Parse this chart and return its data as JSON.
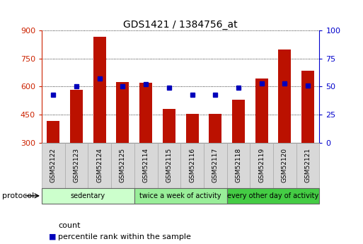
{
  "title": "GDS1421 / 1384756_at",
  "samples": [
    "GSM52122",
    "GSM52123",
    "GSM52124",
    "GSM52125",
    "GSM52114",
    "GSM52115",
    "GSM52116",
    "GSM52117",
    "GSM52118",
    "GSM52119",
    "GSM52120",
    "GSM52121"
  ],
  "counts": [
    415,
    582,
    865,
    625,
    620,
    480,
    455,
    455,
    530,
    645,
    800,
    685
  ],
  "percentiles": [
    43,
    50,
    57,
    50,
    52,
    49,
    43,
    43,
    49,
    53,
    53,
    51
  ],
  "ylim_left": [
    300,
    900
  ],
  "ylim_right": [
    0,
    100
  ],
  "yticks_left": [
    300,
    450,
    600,
    750,
    900
  ],
  "yticks_right": [
    0,
    25,
    50,
    75,
    100
  ],
  "bar_color": "#bb1100",
  "dot_color": "#0000bb",
  "bar_width": 0.55,
  "group_labels": [
    "sedentary",
    "twice a week of activity",
    "every other day of activity"
  ],
  "group_starts": [
    0,
    4,
    8
  ],
  "group_ends": [
    4,
    8,
    12
  ],
  "group_colors": [
    "#ccffcc",
    "#99ee99",
    "#44cc44"
  ],
  "protocol_label": "protocol",
  "legend_count": "count",
  "legend_pct": "percentile rank within the sample",
  "left_axis_color": "#cc2200",
  "right_axis_color": "#0000cc",
  "title_fontsize": 10,
  "tick_fontsize": 8,
  "label_fontsize": 8
}
